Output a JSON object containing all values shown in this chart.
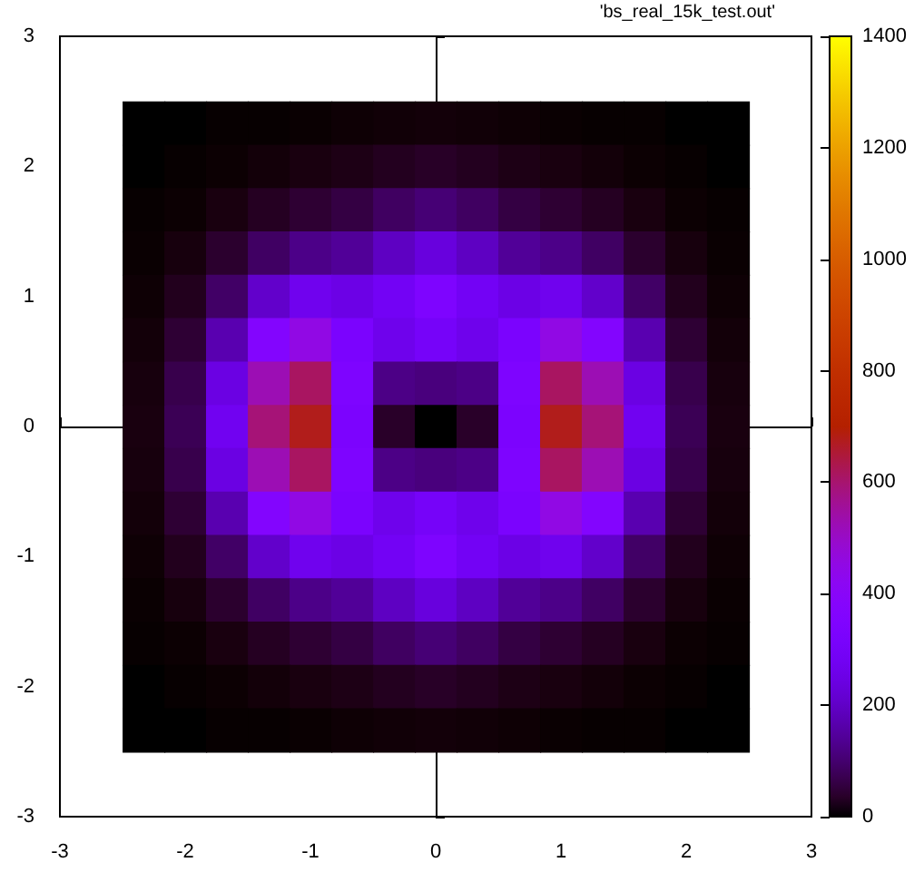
{
  "chart_data": {
    "type": "heatmap",
    "annotations": [
      "'bs_real_15k_test.out'"
    ],
    "x": [
      -2.333,
      -2,
      -1.667,
      -1.333,
      -1,
      -0.667,
      -0.333,
      0,
      0.333,
      0.667,
      1,
      1.333,
      1.667,
      2,
      2.333
    ],
    "y": [
      2.333,
      2,
      1.667,
      1.333,
      1,
      0.667,
      0.333,
      0,
      -0.333,
      -0.667,
      -1,
      -1.333,
      -1.667,
      -2,
      -2.333
    ],
    "cells": [
      [
        0,
        0,
        1,
        1,
        2,
        4,
        6,
        8,
        6,
        4,
        2,
        1,
        1,
        0,
        0
      ],
      [
        0,
        1,
        3,
        8,
        13,
        18,
        27,
        34,
        27,
        18,
        13,
        8,
        3,
        1,
        0
      ],
      [
        1,
        3,
        13,
        30,
        45,
        59,
        87,
        106,
        87,
        59,
        45,
        30,
        13,
        3,
        1
      ],
      [
        2,
        11,
        40,
        89,
        125,
        142,
        192,
        233,
        192,
        142,
        125,
        89,
        40,
        11,
        2
      ],
      [
        4,
        25,
        92,
        205,
        268,
        251,
        286,
        342,
        286,
        251,
        268,
        205,
        92,
        25,
        4
      ],
      [
        8,
        46,
        170,
        370,
        453,
        327,
        264,
        302,
        264,
        327,
        453,
        370,
        170,
        46,
        8
      ],
      [
        11,
        67,
        245,
        526,
        613,
        341,
        123,
        114,
        123,
        341,
        613,
        526,
        245,
        67,
        11
      ],
      [
        13,
        76,
        277,
        592,
        676,
        333,
        36,
        0,
        36,
        333,
        676,
        592,
        277,
        76,
        13
      ],
      [
        11,
        67,
        245,
        526,
        613,
        341,
        123,
        114,
        123,
        341,
        613,
        526,
        245,
        67,
        11
      ],
      [
        8,
        46,
        170,
        370,
        453,
        327,
        264,
        302,
        264,
        327,
        453,
        370,
        170,
        46,
        8
      ],
      [
        4,
        25,
        92,
        205,
        268,
        251,
        286,
        342,
        286,
        251,
        268,
        205,
        92,
        25,
        4
      ],
      [
        2,
        11,
        40,
        89,
        125,
        142,
        192,
        233,
        192,
        142,
        125,
        89,
        40,
        11,
        2
      ],
      [
        1,
        3,
        13,
        30,
        45,
        59,
        87,
        106,
        87,
        59,
        45,
        30,
        13,
        3,
        1
      ],
      [
        0,
        1,
        3,
        8,
        13,
        18,
        27,
        34,
        27,
        18,
        13,
        8,
        3,
        1,
        0
      ],
      [
        0,
        0,
        1,
        1,
        2,
        4,
        6,
        8,
        6,
        4,
        2,
        1,
        1,
        0,
        0
      ]
    ],
    "xlim": [
      -3,
      3
    ],
    "xticks": [
      -3,
      -2,
      -1,
      0,
      1,
      2,
      3
    ],
    "ylim": [
      -3,
      3
    ],
    "yticks": [
      -3,
      -2,
      -1,
      0,
      1,
      2,
      3
    ],
    "clim": [
      0,
      1400
    ],
    "cticks": [
      0,
      200,
      400,
      600,
      800,
      1000,
      1200,
      1400
    ]
  }
}
